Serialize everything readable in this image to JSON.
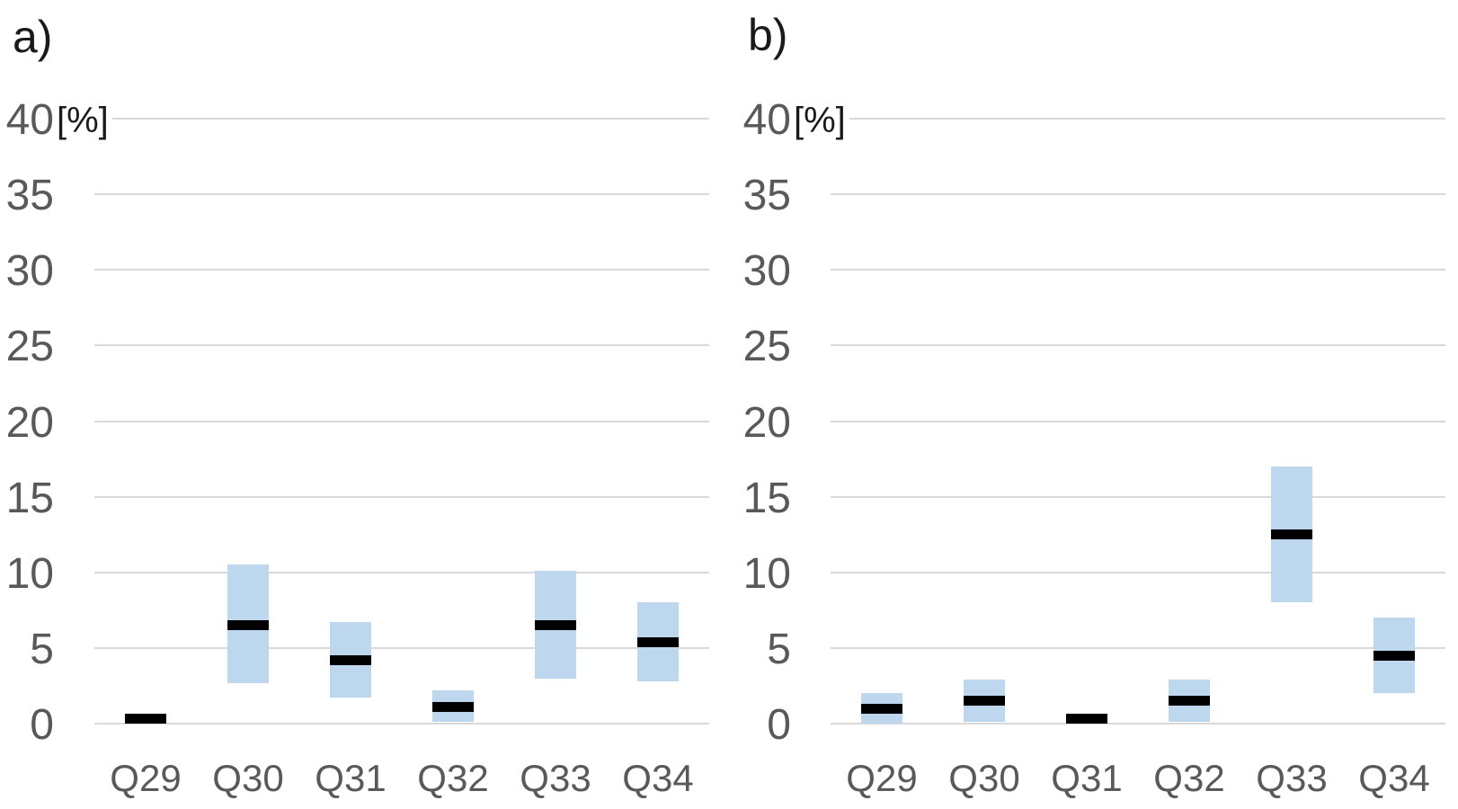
{
  "figure": {
    "background": "#FFFFFF",
    "description": "Two side-by-side floating range bar charts (percentage ranges with median markers) for survey questions Q29-Q34"
  },
  "colors": {
    "bar_fill": "#BDD7EE",
    "marker": "#000000",
    "gridline": "#D9D9D9",
    "tick_label": "#595959",
    "panel_label": "#1A1A1A",
    "background": "#FFFFFF"
  },
  "chart_data": [
    {
      "type": "bar",
      "subtype": "floating-range-bars-with-median-markers",
      "panel_label": "a)",
      "unit_label": "[%]",
      "categories": [
        "Q29",
        "Q30",
        "Q31",
        "Q32",
        "Q33",
        "Q34"
      ],
      "series": [
        {
          "name": "range-low",
          "values": [
            null,
            2.7,
            1.7,
            0.1,
            3.0,
            2.8
          ]
        },
        {
          "name": "range-high",
          "values": [
            null,
            10.5,
            6.7,
            2.2,
            10.1,
            8.0
          ]
        },
        {
          "name": "median-marker",
          "values": [
            0.3,
            6.5,
            4.2,
            1.1,
            6.5,
            5.4
          ]
        }
      ],
      "ylim": [
        0,
        40
      ],
      "yticks": [
        0,
        5,
        10,
        15,
        20,
        25,
        30,
        35,
        40
      ],
      "grid": true,
      "legend": false
    },
    {
      "type": "bar",
      "subtype": "floating-range-bars-with-median-markers",
      "panel_label": "b)",
      "unit_label": "[%]",
      "categories": [
        "Q29",
        "Q30",
        "Q31",
        "Q32",
        "Q33",
        "Q34"
      ],
      "series": [
        {
          "name": "range-low",
          "values": [
            0.0,
            0.1,
            null,
            0.1,
            8.0,
            2.0
          ]
        },
        {
          "name": "range-high",
          "values": [
            2.0,
            2.9,
            null,
            2.9,
            17.0,
            7.0
          ]
        },
        {
          "name": "median-marker",
          "values": [
            1.0,
            1.5,
            0.3,
            1.5,
            12.5,
            4.5
          ]
        }
      ],
      "ylim": [
        0,
        40
      ],
      "yticks": [
        0,
        5,
        10,
        15,
        20,
        25,
        30,
        35,
        40
      ],
      "grid": true,
      "legend": false
    }
  ]
}
